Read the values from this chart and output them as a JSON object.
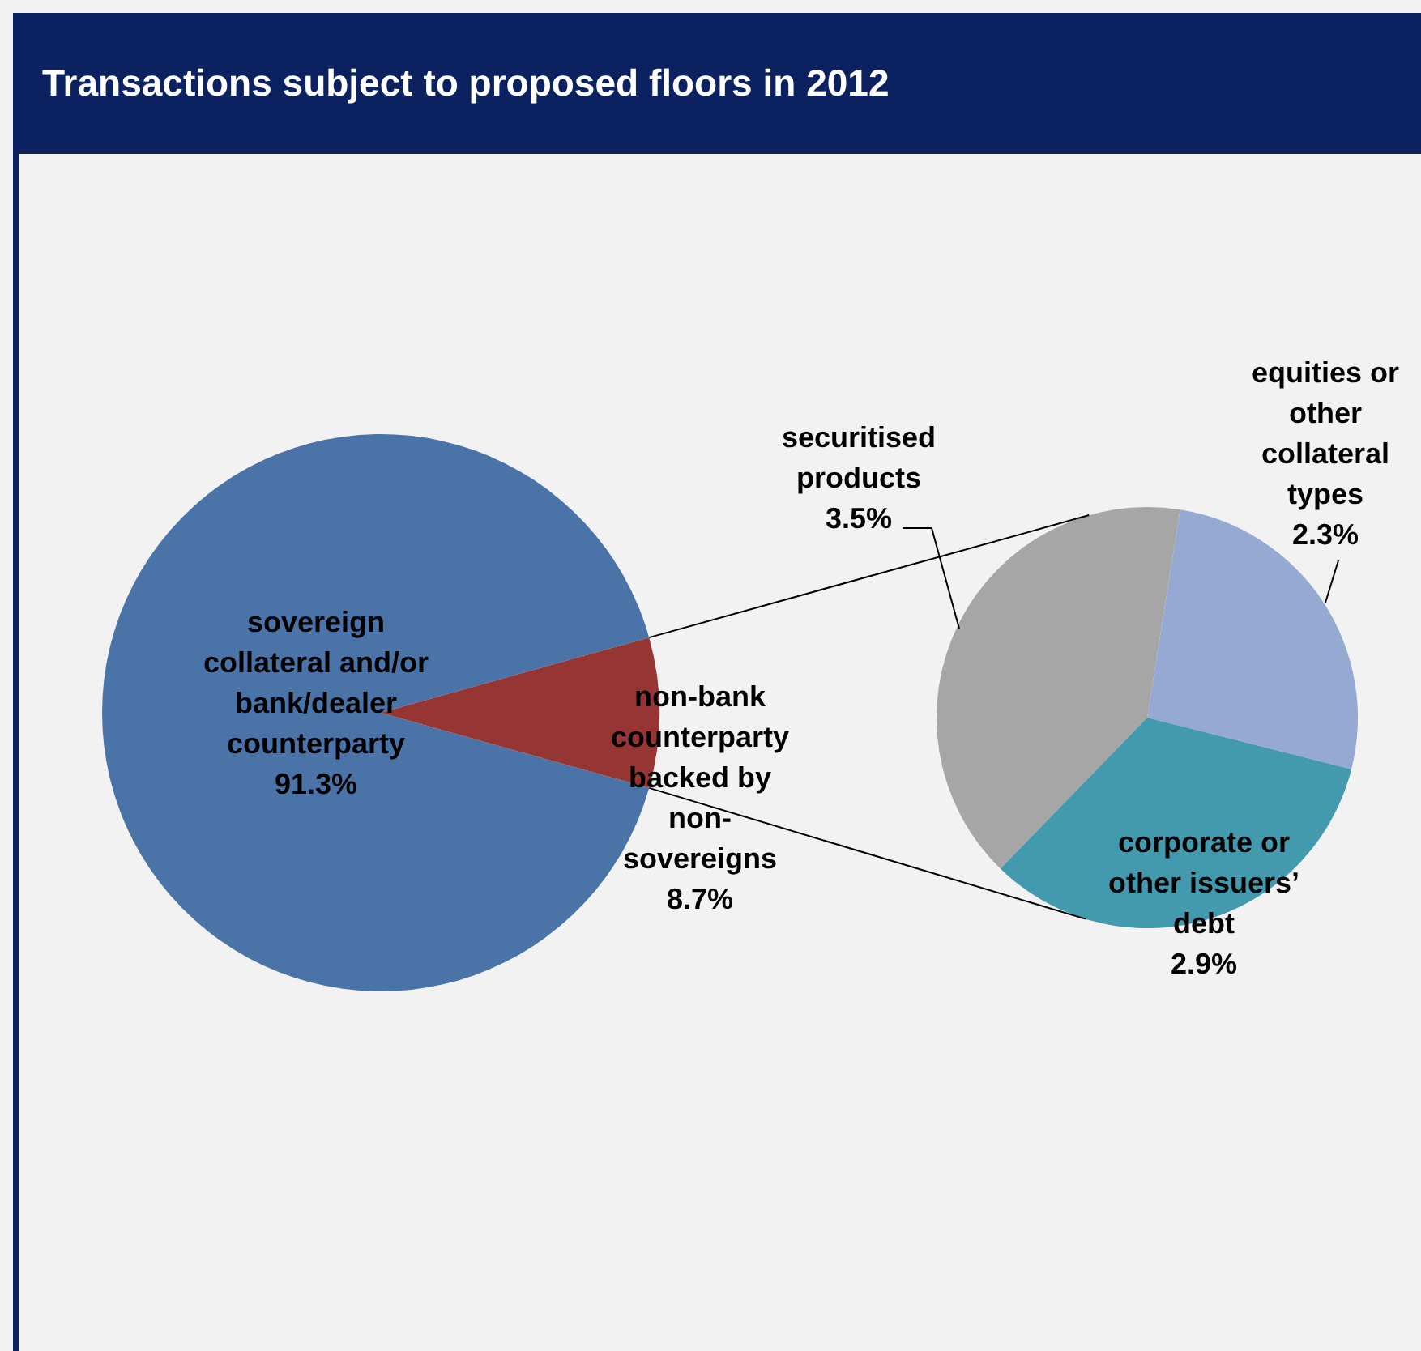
{
  "chart_data": [
    {
      "type": "pie",
      "title": "Transactions subject to proposed floors in 2012",
      "categories": [
        "sovereign collateral and/or bank/dealer counterparty",
        "non-bank counterparty backed by non-sovereigns"
      ],
      "values": [
        91.3,
        8.7
      ],
      "colors": [
        "#4a73a8",
        "#963634"
      ],
      "value_labels": [
        "91.3%",
        "8.7%"
      ]
    },
    {
      "type": "pie",
      "categories": [
        "securitised products",
        "equities or other collateral types",
        "corporate or other issuers’ debt"
      ],
      "values": [
        3.5,
        2.3,
        2.9
      ],
      "colors": [
        "#a6a6a6",
        "#95a9d2",
        "#4399ad"
      ],
      "value_labels": [
        "3.5%",
        "2.3%",
        "2.9%"
      ]
    }
  ]
}
